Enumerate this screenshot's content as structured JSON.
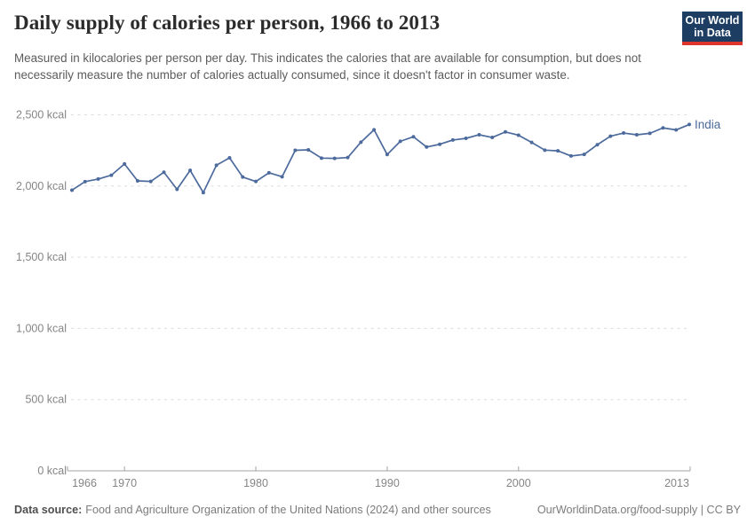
{
  "header": {
    "title": "Daily supply of calories per person, 1966 to 2013",
    "subtitle": "Measured in kilocalories per person per day. This indicates the calories that are available for consumption, but does not necessarily measure the number of calories actually consumed, since it doesn't factor in consumer waste."
  },
  "logo": {
    "line1": "Our World",
    "line2": "in Data"
  },
  "chart_data": {
    "type": "line",
    "title": "Daily supply of calories per person, 1966 to 2013",
    "xlabel": "",
    "ylabel": "kcal",
    "ylim": [
      0,
      2500
    ],
    "grid": "horizontal-dashed",
    "legend_position": "end-of-line-label",
    "x": [
      1966,
      1967,
      1968,
      1969,
      1970,
      1971,
      1972,
      1973,
      1974,
      1975,
      1976,
      1977,
      1978,
      1979,
      1980,
      1981,
      1982,
      1983,
      1984,
      1985,
      1986,
      1987,
      1988,
      1989,
      1990,
      1991,
      1992,
      1993,
      1994,
      1995,
      1996,
      1997,
      1998,
      1999,
      2000,
      2001,
      2002,
      2003,
      2004,
      2005,
      2006,
      2007,
      2008,
      2009,
      2010,
      2011,
      2012,
      2013
    ],
    "series": [
      {
        "name": "India",
        "color": "#4c6a9c",
        "values": [
          1971,
          2031,
          2049,
          2076,
          2155,
          2036,
          2032,
          2097,
          1977,
          2110,
          1954,
          2146,
          2198,
          2063,
          2032,
          2093,
          2065,
          2251,
          2254,
          2196,
          2194,
          2200,
          2308,
          2395,
          2221,
          2314,
          2346,
          2274,
          2293,
          2323,
          2335,
          2360,
          2341,
          2380,
          2357,
          2306,
          2252,
          2247,
          2211,
          2222,
          2290,
          2350,
          2372,
          2360,
          2370,
          2408,
          2394,
          2432
        ]
      }
    ],
    "yticks": [
      {
        "value": 0,
        "label": "0 kcal"
      },
      {
        "value": 500,
        "label": "500 kcal"
      },
      {
        "value": 1000,
        "label": "1,000 kcal"
      },
      {
        "value": 1500,
        "label": "1,500 kcal"
      },
      {
        "value": 2000,
        "label": "2,000 kcal"
      },
      {
        "value": 2500,
        "label": "2,500 kcal"
      }
    ],
    "xticks": [
      1966,
      1970,
      1980,
      1990,
      2000,
      2013
    ]
  },
  "footer": {
    "label": "Data source:",
    "source": "Food and Agriculture Organization of the United Nations (2024) and other sources",
    "url_text": "OurWorldinData.org/food-supply",
    "separator": " | ",
    "license": "CC BY"
  },
  "colors": {
    "line": "#4c6a9c",
    "logo_bg": "#1d3d63",
    "logo_bar": "#dd352b",
    "grid": "#dcdcdc",
    "axis": "#a3a3a3",
    "tick_label": "#858585"
  }
}
